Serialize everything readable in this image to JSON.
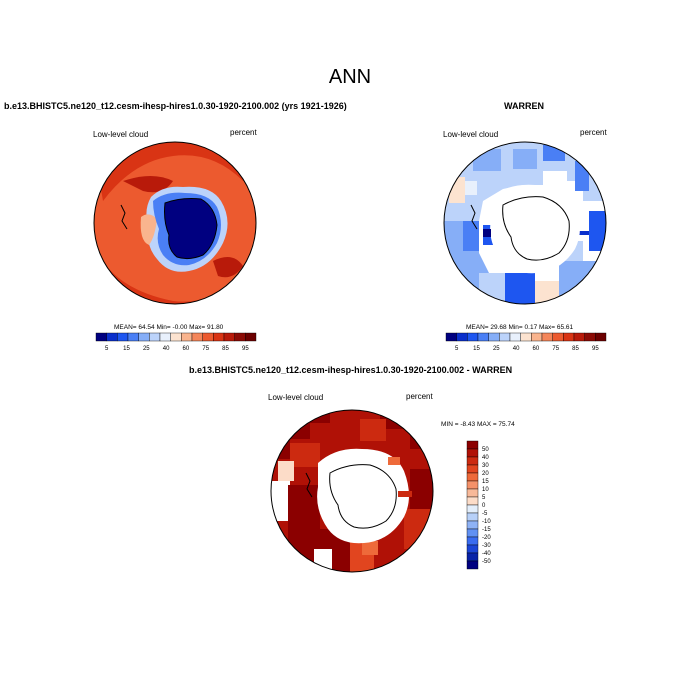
{
  "page": {
    "title": "ANN"
  },
  "panels": [
    {
      "id": "case",
      "title": "b.e13.BHISTC5.ne120_t12.cesm-ihesp-hires1.0.30-1920-2100.002 (yrs 1921-1926)",
      "left_label": "Low-level cloud",
      "right_label": "percent",
      "stats": "MEAN= 64.54  Min= -0.00  Max= 91.80"
    },
    {
      "id": "obs",
      "title": "WARREN",
      "left_label": "Low-level cloud",
      "right_label": "percent",
      "stats": "MEAN= 29.68  Min= 0.17  Max= 65.61"
    },
    {
      "id": "diff",
      "title": "b.e13.BHISTC5.ne120_t12.cesm-ihesp-hires1.0.30-1920-2100.002 - WARREN",
      "left_label": "Low-level cloud",
      "right_label": "percent",
      "stats": "MIN = -8.43 MAX = 75.74"
    }
  ],
  "colorbar_abs": {
    "labels": [
      "5",
      "15",
      "25",
      "40",
      "60",
      "75",
      "85",
      "95"
    ],
    "colors": [
      "#000080",
      "#0a2fcc",
      "#1e56f0",
      "#4a7ff5",
      "#86aef7",
      "#bcd3fa",
      "#e8f0fc",
      "#fce3d0",
      "#f9b48e",
      "#f4865a",
      "#ec5a2f",
      "#d93414",
      "#b81a0a",
      "#8b0a05",
      "#6b0000"
    ]
  },
  "colorbar_diff": {
    "labels": [
      "50",
      "40",
      "30",
      "20",
      "15",
      "10",
      "5",
      "0",
      "-5",
      "-10",
      "-15",
      "-20",
      "-30",
      "-40",
      "-50"
    ],
    "colors": [
      "#8b0000",
      "#b01106",
      "#cc2a10",
      "#e1451f",
      "#ee6a3a",
      "#f49169",
      "#f8b999",
      "#fcdcc8",
      "#e3eefb",
      "#b7d0f8",
      "#8eb2f5",
      "#6191f3",
      "#3a6cf0",
      "#1b45d6",
      "#0823a8",
      "#000080"
    ]
  }
}
